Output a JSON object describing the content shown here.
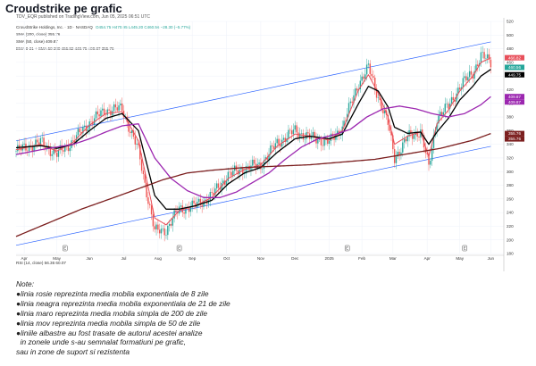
{
  "header": {
    "title": "Croudstrike pe grafic",
    "published": "TDV_EQR published on TradingView.com, Jun 05, 2025 06:51 UTC"
  },
  "legend": {
    "symbol_line": "CrowdStrike Holdings, Inc. · 1D · NASDAQ",
    "ohlc": "O454.75 H470.95 L445.20 C460.56 −28.30 (−5.77%)",
    "sma200": "SMA (200, close)  355.76",
    "sma50": "SMA (50, close)  409.87",
    "ema": "EMA 8-21 + SMA 50 200  466.82  449.75  409.87  355.76"
  },
  "rsi_label": "RSI (14, close)  56.36  60.07",
  "chart_data": {
    "type": "line",
    "title": "Croudstrike pe grafic",
    "xlabel": "",
    "ylabel": "",
    "ylim": [
      180,
      520
    ],
    "y_ticks": [
      180,
      200,
      220,
      240,
      260,
      280,
      300,
      320,
      340,
      360,
      380,
      400,
      420,
      440,
      460,
      480,
      500,
      520
    ],
    "x_ticks": [
      "Apr",
      "May",
      "Jun",
      "Jul",
      "Aug",
      "Sep",
      "Oct",
      "Nov",
      "Dec",
      "2025",
      "Feb",
      "Mar",
      "Apr",
      "May",
      "Jun"
    ],
    "x_tick_pos": [
      5,
      25,
      45,
      66,
      87,
      108,
      129,
      150,
      171,
      192,
      212,
      231,
      252,
      272,
      291
    ],
    "n_points": 300,
    "series": [
      {
        "name": "Price",
        "color": "#26a69a",
        "knots": [
          [
            0,
            330
          ],
          [
            15,
            343
          ],
          [
            25,
            325
          ],
          [
            35,
            345
          ],
          [
            45,
            372
          ],
          [
            55,
            390
          ],
          [
            65,
            392
          ],
          [
            75,
            330
          ],
          [
            85,
            212
          ],
          [
            92,
            215
          ],
          [
            100,
            245
          ],
          [
            110,
            250
          ],
          [
            120,
            265
          ],
          [
            130,
            295
          ],
          [
            140,
            305
          ],
          [
            150,
            310
          ],
          [
            160,
            342
          ],
          [
            171,
            360
          ],
          [
            180,
            350
          ],
          [
            192,
            343
          ],
          [
            200,
            365
          ],
          [
            210,
            430
          ],
          [
            216,
            452
          ],
          [
            222,
            410
          ],
          [
            228,
            370
          ],
          [
            232,
            320
          ],
          [
            240,
            350
          ],
          [
            248,
            360
          ],
          [
            253,
            305
          ],
          [
            258,
            380
          ],
          [
            265,
            395
          ],
          [
            272,
            425
          ],
          [
            280,
            445
          ],
          [
            285,
            470
          ],
          [
            291,
            460
          ]
        ]
      },
      {
        "name": "EMA 8",
        "color": "#e8505b",
        "value": "466.82",
        "knots": [
          [
            0,
            332
          ],
          [
            15,
            340
          ],
          [
            25,
            330
          ],
          [
            35,
            343
          ],
          [
            45,
            368
          ],
          [
            55,
            385
          ],
          [
            65,
            388
          ],
          [
            75,
            345
          ],
          [
            85,
            232
          ],
          [
            92,
            222
          ],
          [
            100,
            243
          ],
          [
            110,
            250
          ],
          [
            120,
            262
          ],
          [
            130,
            290
          ],
          [
            140,
            303
          ],
          [
            150,
            310
          ],
          [
            160,
            337
          ],
          [
            171,
            355
          ],
          [
            180,
            352
          ],
          [
            192,
            346
          ],
          [
            200,
            360
          ],
          [
            210,
            420
          ],
          [
            216,
            442
          ],
          [
            222,
            415
          ],
          [
            228,
            380
          ],
          [
            232,
            340
          ],
          [
            240,
            352
          ],
          [
            248,
            358
          ],
          [
            253,
            322
          ],
          [
            258,
            370
          ],
          [
            265,
            390
          ],
          [
            272,
            418
          ],
          [
            280,
            440
          ],
          [
            285,
            460
          ],
          [
            291,
            466.82
          ]
        ]
      },
      {
        "name": "EMA 21",
        "color": "#000000",
        "value": "449.75",
        "knots": [
          [
            0,
            335
          ],
          [
            15,
            338
          ],
          [
            25,
            334
          ],
          [
            35,
            340
          ],
          [
            45,
            360
          ],
          [
            55,
            378
          ],
          [
            65,
            385
          ],
          [
            75,
            360
          ],
          [
            85,
            265
          ],
          [
            92,
            245
          ],
          [
            100,
            245
          ],
          [
            110,
            250
          ],
          [
            120,
            258
          ],
          [
            130,
            282
          ],
          [
            140,
            298
          ],
          [
            150,
            306
          ],
          [
            160,
            328
          ],
          [
            171,
            348
          ],
          [
            180,
            352
          ],
          [
            192,
            348
          ],
          [
            200,
            355
          ],
          [
            210,
            400
          ],
          [
            216,
            425
          ],
          [
            222,
            418
          ],
          [
            228,
            395
          ],
          [
            232,
            365
          ],
          [
            240,
            356
          ],
          [
            248,
            358
          ],
          [
            253,
            340
          ],
          [
            258,
            358
          ],
          [
            265,
            378
          ],
          [
            272,
            405
          ],
          [
            280,
            425
          ],
          [
            285,
            440
          ],
          [
            291,
            449.75
          ]
        ]
      },
      {
        "name": "SMA 50",
        "color": "#9c27b0",
        "value": "409.87",
        "knots": [
          [
            0,
            325
          ],
          [
            15,
            332
          ],
          [
            25,
            336
          ],
          [
            35,
            340
          ],
          [
            45,
            348
          ],
          [
            55,
            358
          ],
          [
            65,
            367
          ],
          [
            75,
            370
          ],
          [
            85,
            320
          ],
          [
            95,
            290
          ],
          [
            105,
            272
          ],
          [
            115,
            262
          ],
          [
            125,
            262
          ],
          [
            135,
            270
          ],
          [
            145,
            284
          ],
          [
            155,
            298
          ],
          [
            165,
            318
          ],
          [
            175,
            336
          ],
          [
            185,
            348
          ],
          [
            195,
            354
          ],
          [
            205,
            362
          ],
          [
            215,
            380
          ],
          [
            225,
            392
          ],
          [
            235,
            396
          ],
          [
            245,
            392
          ],
          [
            255,
            385
          ],
          [
            265,
            380
          ],
          [
            275,
            385
          ],
          [
            285,
            398
          ],
          [
            291,
            409.87
          ]
        ]
      },
      {
        "name": "SMA 200",
        "color": "#7b1e1e",
        "value": "355.76",
        "knots": [
          [
            0,
            205
          ],
          [
            20,
            225
          ],
          [
            40,
            245
          ],
          [
            60,
            262
          ],
          [
            75,
            275
          ],
          [
            90,
            288
          ],
          [
            105,
            298
          ],
          [
            120,
            302
          ],
          [
            140,
            306
          ],
          [
            160,
            308
          ],
          [
            180,
            310
          ],
          [
            200,
            314
          ],
          [
            220,
            318
          ],
          [
            240,
            326
          ],
          [
            260,
            334
          ],
          [
            280,
            346
          ],
          [
            291,
            355.76
          ]
        ]
      }
    ],
    "channel_lines": [
      {
        "name": "Upper channel",
        "color": "#2962ff",
        "from": [
          0,
          345
        ],
        "to": [
          291,
          490
        ]
      },
      {
        "name": "Lower channel",
        "color": "#2962ff",
        "from": [
          0,
          192
        ],
        "to": [
          291,
          337
        ]
      }
    ],
    "price_labels": [
      {
        "label": "EMA 8",
        "value": "466.82",
        "color": "#e8505b"
      },
      {
        "label": "CRWD",
        "value": "460.56",
        "color": "#26a69a"
      },
      {
        "label": "EMA 21",
        "value": "449.75",
        "color": "#000000"
      },
      {
        "label": "SMA 50",
        "value": "409.87",
        "color": "#9c27b0"
      },
      {
        "label": "SMA 50b",
        "value": "409.87",
        "color": "#9c27b0"
      },
      {
        "label": "SMA 200",
        "value": "355.76",
        "color": "#7b1e1e"
      },
      {
        "label": "SMA 200b",
        "value": "355.76",
        "color": "#7b1e1e"
      }
    ],
    "event_markers": [
      {
        "label": "E",
        "x": 30
      },
      {
        "label": "E",
        "x": 100
      },
      {
        "label": "E",
        "x": 203
      },
      {
        "label": "E",
        "x": 275
      }
    ]
  },
  "notes": {
    "heading": "Note:",
    "lines": [
      "●linia rosie reprezinta media mobila exponentiala de 8 zile",
      "●linia neagra reprezinta media mobila exponentiala de 21 de zile",
      "●linia maro reprezinta media mobila simpla de 200 de zile",
      "●linia mov reprezinta media mobila simpla de 50 de zile",
      "●liniile albastre au fost trasate de autorul acestei analize",
      "  in zonele unde s-au semnalat formatiuni pe grafic,",
      "sau in zone de suport si rezistenta"
    ]
  }
}
